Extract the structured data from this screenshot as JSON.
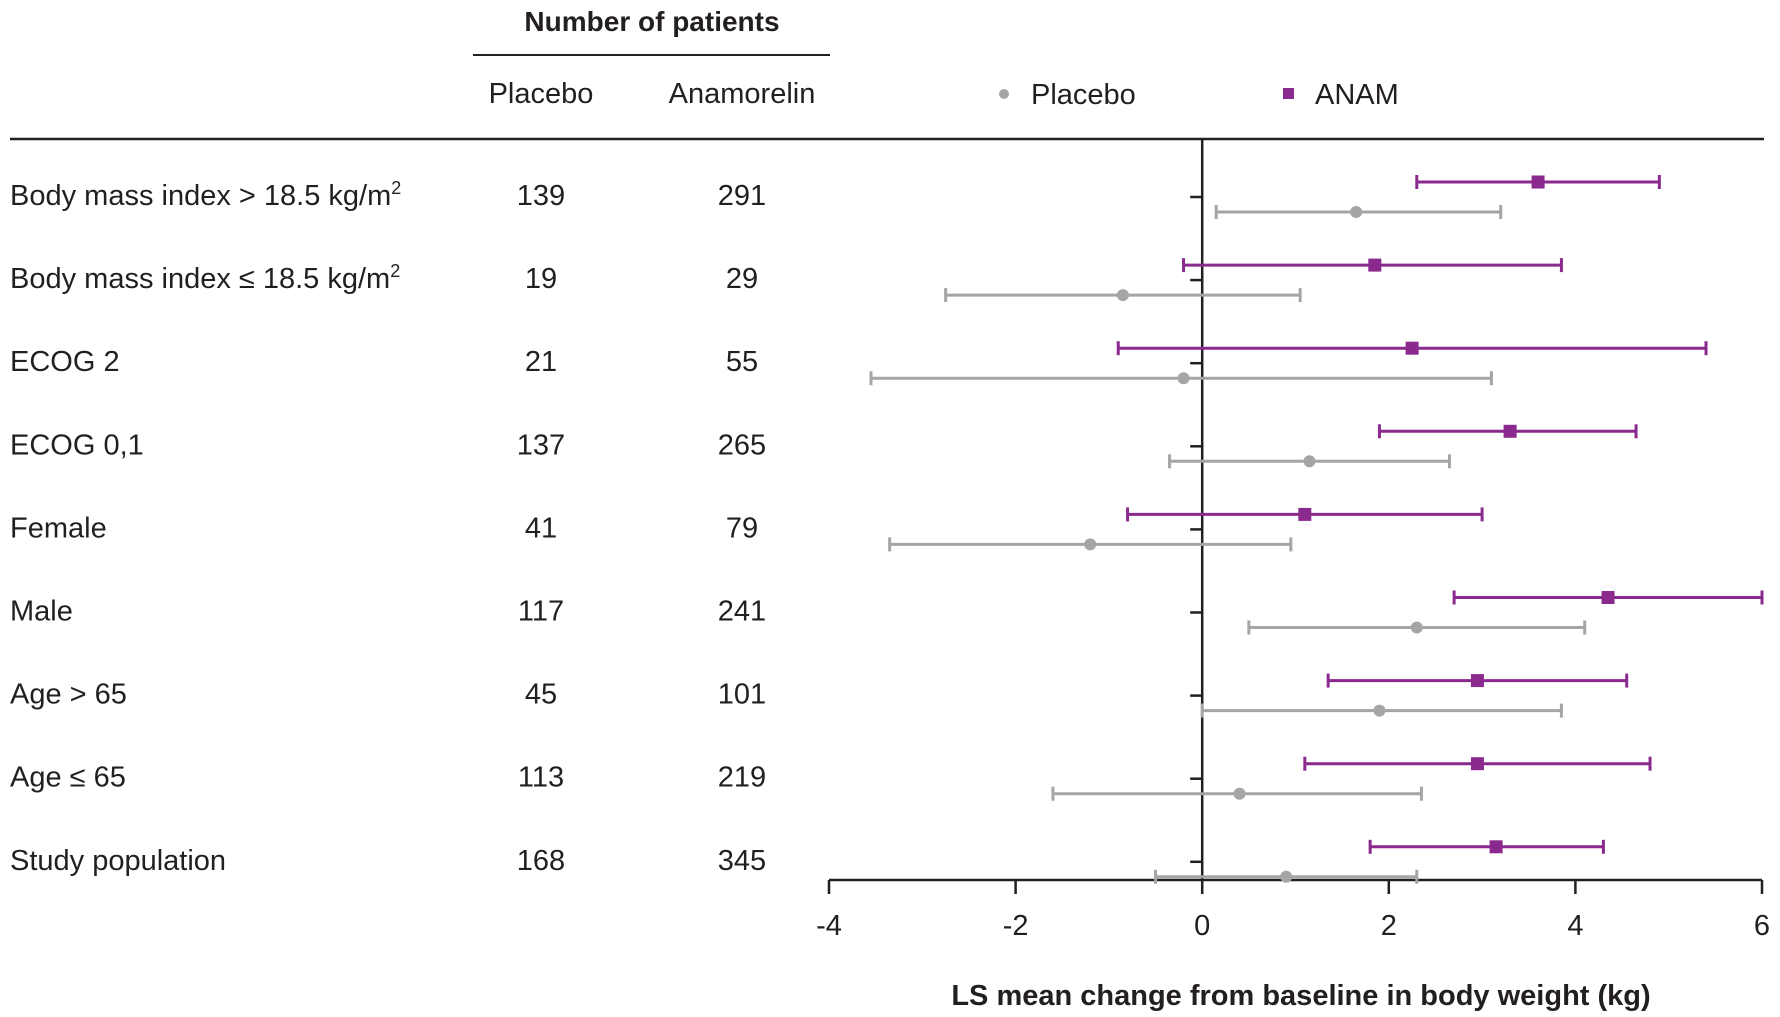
{
  "header": {
    "group_title": "Number of patients",
    "col_placebo": "Placebo",
    "col_anamorelin": "Anamorelin"
  },
  "legend": {
    "placebo_label": "Placebo",
    "anam_label": "ANAM"
  },
  "colors": {
    "placebo": "#a5a5a5",
    "anam": "#8b2a8e",
    "axis": "#231f20",
    "text": "#231f20"
  },
  "chart_data": {
    "type": "forest",
    "xlabel": "LS mean change from baseline in body weight (kg)",
    "xlim": [
      -4,
      6
    ],
    "xticks": [
      -4,
      -2,
      0,
      2,
      4,
      6
    ],
    "xtick_labels": [
      "-4",
      "-2",
      "0",
      "2",
      "4",
      "6"
    ],
    "legend_position": "top",
    "series": [
      {
        "name": "Placebo",
        "marker": "circle"
      },
      {
        "name": "ANAM",
        "marker": "square"
      }
    ],
    "rows": [
      {
        "label": "Body mass index > 18.5 kg/m",
        "label_sup": "2",
        "n_placebo": "139",
        "n_anamorelin": "291",
        "anam": {
          "mean": 3.6,
          "lo": 2.3,
          "hi": 4.9
        },
        "placebo": {
          "mean": 1.65,
          "lo": 0.15,
          "hi": 3.2
        }
      },
      {
        "label": "Body mass index ≤ 18.5 kg/m",
        "label_sup": "2",
        "n_placebo": "19",
        "n_anamorelin": "29",
        "anam": {
          "mean": 1.85,
          "lo": -0.2,
          "hi": 3.85
        },
        "placebo": {
          "mean": -0.85,
          "lo": -2.75,
          "hi": 1.05
        }
      },
      {
        "label": "ECOG 2",
        "label_sup": "",
        "n_placebo": "21",
        "n_anamorelin": "55",
        "anam": {
          "mean": 2.25,
          "lo": -0.9,
          "hi": 5.4
        },
        "placebo": {
          "mean": -0.2,
          "lo": -3.55,
          "hi": 3.1
        }
      },
      {
        "label": "ECOG 0,1",
        "label_sup": "",
        "n_placebo": "137",
        "n_anamorelin": "265",
        "anam": {
          "mean": 3.3,
          "lo": 1.9,
          "hi": 4.65
        },
        "placebo": {
          "mean": 1.15,
          "lo": -0.35,
          "hi": 2.65
        }
      },
      {
        "label": "Female",
        "label_sup": "",
        "n_placebo": "41",
        "n_anamorelin": "79",
        "anam": {
          "mean": 1.1,
          "lo": -0.8,
          "hi": 3.0
        },
        "placebo": {
          "mean": -1.2,
          "lo": -3.35,
          "hi": 0.95
        }
      },
      {
        "label": "Male",
        "label_sup": "",
        "n_placebo": "117",
        "n_anamorelin": "241",
        "anam": {
          "mean": 4.35,
          "lo": 2.7,
          "hi": 6.0
        },
        "placebo": {
          "mean": 2.3,
          "lo": 0.5,
          "hi": 4.1
        }
      },
      {
        "label": "Age > 65",
        "label_sup": "",
        "n_placebo": "45",
        "n_anamorelin": "101",
        "anam": {
          "mean": 2.95,
          "lo": 1.35,
          "hi": 4.55
        },
        "placebo": {
          "mean": 1.9,
          "lo": 0.0,
          "hi": 3.85
        }
      },
      {
        "label": "Age ≤ 65",
        "label_sup": "",
        "n_placebo": "113",
        "n_anamorelin": "219",
        "anam": {
          "mean": 2.95,
          "lo": 1.1,
          "hi": 4.8
        },
        "placebo": {
          "mean": 0.4,
          "lo": -1.6,
          "hi": 2.35
        }
      },
      {
        "label": "Study population",
        "label_sup": "",
        "n_placebo": "168",
        "n_anamorelin": "345",
        "anam": {
          "mean": 3.15,
          "lo": 1.8,
          "hi": 4.3
        },
        "placebo": {
          "mean": 0.9,
          "lo": -0.5,
          "hi": 2.3
        }
      }
    ]
  }
}
